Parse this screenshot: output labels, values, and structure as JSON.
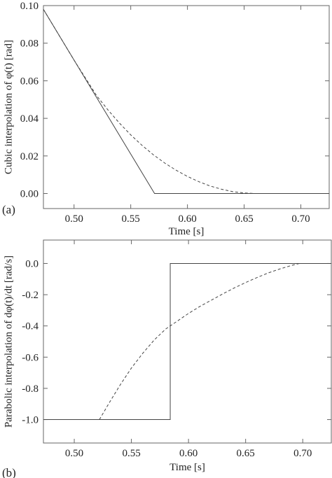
{
  "chart_data": [
    {
      "type": "line",
      "panel_label": "(a)",
      "xlabel": "Time [s]",
      "ylabel": "Cubic interpolation of φ(t) [rad]",
      "xlim": [
        0.473,
        0.725
      ],
      "ylim": [
        -0.008,
        0.1
      ],
      "x_ticks": [
        0.5,
        0.55,
        0.6,
        0.65,
        0.7
      ],
      "x_tick_labels": [
        "0.50",
        "0.55",
        "0.60",
        "0.65",
        "0.70"
      ],
      "y_ticks": [
        0.0,
        0.02,
        0.04,
        0.06,
        0.08,
        0.1
      ],
      "y_tick_labels": [
        "0.00",
        "0.02",
        "0.04",
        "0.06",
        "0.08",
        "0.10"
      ],
      "grid": false,
      "series": [
        {
          "style": "solid",
          "x": [
            0.473,
            0.571,
            0.725
          ],
          "y": [
            0.098,
            0.0,
            0.0
          ]
        },
        {
          "style": "dashed",
          "x": [
            0.473,
            0.5,
            0.52,
            0.53,
            0.54,
            0.55,
            0.56,
            0.57,
            0.58,
            0.59,
            0.6,
            0.61,
            0.62,
            0.63,
            0.64,
            0.65,
            0.66,
            0.67
          ],
          "y": [
            0.098,
            0.071,
            0.052,
            0.0444,
            0.0375,
            0.0312,
            0.0256,
            0.0206,
            0.0162,
            0.0124,
            0.0091,
            0.0063,
            0.004,
            0.0023,
            0.001,
            0.0003,
            0.0,
            0.0
          ]
        }
      ]
    },
    {
      "type": "line",
      "panel_label": "(b)",
      "xlabel": "Time [s]",
      "ylabel": "Parabolic interpolation of dφ(t)/dt [rad/s]",
      "xlim": [
        0.473,
        0.725
      ],
      "ylim": [
        -1.15,
        0.15
      ],
      "x_ticks": [
        0.5,
        0.55,
        0.6,
        0.65,
        0.7
      ],
      "x_tick_labels": [
        "0.50",
        "0.55",
        "0.60",
        "0.65",
        "0.70"
      ],
      "y_ticks": [
        -1.0,
        -0.8,
        -0.6,
        -0.4,
        -0.2,
        0.0
      ],
      "y_tick_labels": [
        "-1.0",
        "-0.8",
        "-0.6",
        "-0.4",
        "-0.2",
        "0.0"
      ],
      "grid": false,
      "series": [
        {
          "style": "solid",
          "x": [
            0.473,
            0.584,
            0.584,
            0.725
          ],
          "y": [
            -1.0,
            -1.0,
            0.0,
            0.0
          ]
        },
        {
          "style": "dashed",
          "x": [
            0.522,
            0.53,
            0.54,
            0.55,
            0.56,
            0.57,
            0.58,
            0.59,
            0.6,
            0.61,
            0.62,
            0.63,
            0.64,
            0.65,
            0.66,
            0.67,
            0.68,
            0.69,
            0.697
          ],
          "y": [
            -1.0,
            -0.9,
            -0.78,
            -0.67,
            -0.575,
            -0.49,
            -0.42,
            -0.37,
            -0.32,
            -0.275,
            -0.235,
            -0.195,
            -0.157,
            -0.122,
            -0.09,
            -0.06,
            -0.035,
            -0.013,
            0.0
          ]
        }
      ]
    }
  ]
}
